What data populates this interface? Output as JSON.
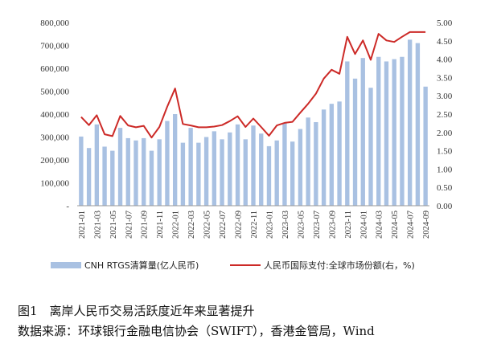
{
  "caption": {
    "title": "图1　离岸人民币交易活跃度近年来显著提升",
    "source": "数据来源：环球银行金融电信协会（SWIFT），香港金管局，Wind"
  },
  "colors": {
    "bar": "#a9c1e2",
    "line": "#cc2a27",
    "axis": "#999999",
    "text": "#333333"
  },
  "chart_data": {
    "type": "bar",
    "title": "",
    "categories": [
      "2021-01",
      "2021-02",
      "2021-03",
      "2021-04",
      "2021-05",
      "2021-06",
      "2021-07",
      "2021-08",
      "2021-09",
      "2021-10",
      "2021-11",
      "2021-12",
      "2022-01",
      "2022-02",
      "2022-03",
      "2022-04",
      "2022-05",
      "2022-06",
      "2022-07",
      "2022-08",
      "2022-09",
      "2022-10",
      "2022-11",
      "2022-12",
      "2023-01",
      "2023-02",
      "2023-03",
      "2023-04",
      "2023-05",
      "2023-06",
      "2023-07",
      "2023-08",
      "2023-09",
      "2023-10",
      "2023-11",
      "2023-12",
      "2024-01",
      "2024-02",
      "2024-03",
      "2024-04",
      "2024-05",
      "2024-06",
      "2024-07",
      "2024-08",
      "2024-09"
    ],
    "x_tick_labels": [
      "2021-01",
      "2021-03",
      "2021-05",
      "2021-07",
      "2021-09",
      "2021-11",
      "2022-01",
      "2022-03",
      "2022-05",
      "2022-07",
      "2022-09",
      "2022-11",
      "2023-01",
      "2023-03",
      "2023-05",
      "2023-07",
      "2023-09",
      "2023-11",
      "2024-01",
      "2024-03",
      "2024-05",
      "2024-07",
      "2024-09"
    ],
    "series": [
      {
        "name": "CNH RTGS清算量(亿人民币)",
        "type": "bar",
        "axis": "left",
        "values": [
          302000,
          252000,
          355000,
          258000,
          240000,
          340000,
          295000,
          285000,
          295000,
          240000,
          290000,
          370000,
          400000,
          275000,
          340000,
          275000,
          300000,
          325000,
          290000,
          320000,
          355000,
          290000,
          350000,
          315000,
          260000,
          285000,
          360000,
          280000,
          335000,
          385000,
          365000,
          420000,
          445000,
          455000,
          630000,
          555000,
          645000,
          515000,
          650000,
          630000,
          640000,
          650000,
          725000,
          710000,
          520000
        ]
      },
      {
        "name": "人民币国际支付:全球市场份额(右，%)",
        "type": "line",
        "axis": "right",
        "values": [
          2.42,
          2.2,
          2.47,
          1.95,
          1.9,
          2.45,
          2.19,
          2.14,
          2.18,
          1.86,
          2.15,
          2.7,
          3.2,
          2.23,
          2.19,
          2.14,
          2.14,
          2.16,
          2.2,
          2.31,
          2.44,
          2.15,
          2.38,
          2.15,
          1.91,
          2.19,
          2.26,
          2.29,
          2.54,
          2.78,
          3.06,
          3.47,
          3.71,
          3.6,
          4.61,
          4.14,
          4.51,
          3.98,
          4.69,
          4.51,
          4.47,
          4.61,
          4.74,
          4.74,
          4.74
        ]
      }
    ],
    "y_left": {
      "ylim": [
        0,
        800000
      ],
      "ticks": [
        "-",
        "100,000",
        "200,000",
        "300,000",
        "400,000",
        "500,000",
        "600,000",
        "700,000",
        "800,000"
      ]
    },
    "y_right": {
      "ylim": [
        0,
        5
      ],
      "ticks": [
        "0.00",
        "0.50",
        "1.00",
        "1.50",
        "2.00",
        "2.50",
        "3.00",
        "3.50",
        "4.00",
        "4.50",
        "5.00"
      ]
    },
    "legend": {
      "position": "bottom"
    },
    "grid": false
  }
}
